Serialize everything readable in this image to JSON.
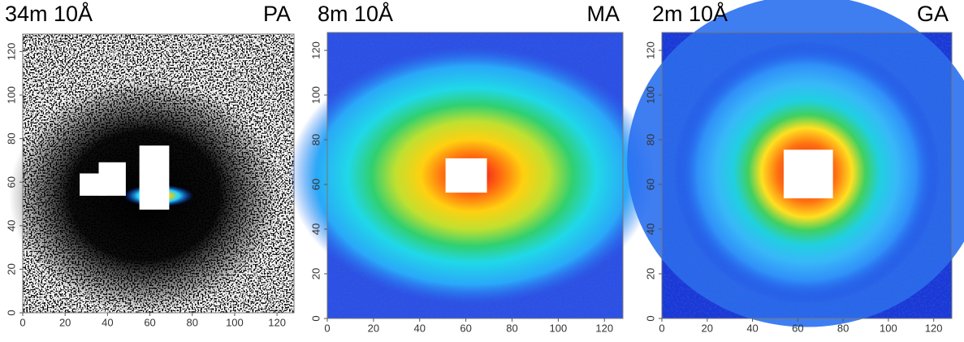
{
  "chart_data": [
    {
      "type": "heatmap",
      "title": "34m 10Å",
      "label": "PA",
      "xlim": [
        0,
        128
      ],
      "ylim": [
        0,
        128
      ],
      "xticks": [
        0,
        20,
        40,
        60,
        80,
        100,
        120
      ],
      "yticks": [
        0,
        20,
        40,
        60,
        80,
        100,
        120
      ]
    },
    {
      "type": "heatmap",
      "title": "8m 10Å",
      "label": "MA",
      "xlim": [
        0,
        128
      ],
      "ylim": [
        0,
        128
      ],
      "xticks": [
        0,
        20,
        40,
        60,
        80,
        100,
        120
      ],
      "yticks": [
        0,
        20,
        40,
        60,
        80,
        100,
        120
      ]
    },
    {
      "type": "heatmap",
      "title": "2m 10Å",
      "label": "GA",
      "xlim": [
        0,
        128
      ],
      "ylim": [
        0,
        128
      ],
      "xticks": [
        0,
        20,
        40,
        60,
        80,
        100,
        120
      ],
      "yticks": [
        0,
        20,
        40,
        60,
        80,
        100,
        120
      ]
    }
  ]
}
